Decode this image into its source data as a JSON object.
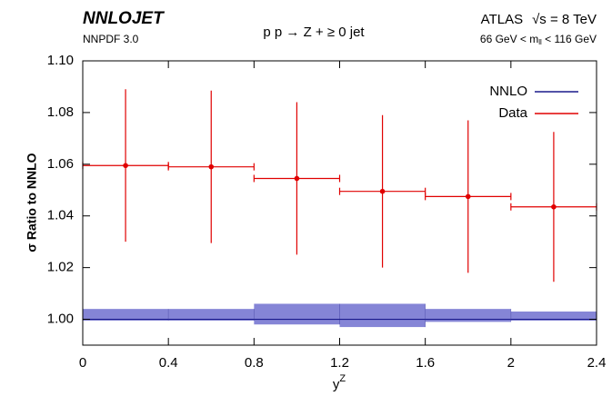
{
  "chart_data": {
    "type": "ratio",
    "title": "NNLOJET",
    "subtitle": "NNPDF 3.0",
    "process": "p p → Z + ≥ 0 jet",
    "experiment": "ATLAS",
    "energy": "√s = 8 TeV",
    "mass_range": {
      "prefix": "66 GeV < m",
      "subscript": "ll",
      "suffix": " < 116 GeV"
    },
    "x_label": {
      "text": "y",
      "superscript": "Z"
    },
    "y_label": "σ  Ratio to NNLO",
    "xlim": [
      0,
      2.4
    ],
    "xticks": [
      0,
      0.4,
      0.8,
      1.2,
      1.6,
      2,
      2.4
    ],
    "ylim": [
      0.99,
      1.1
    ],
    "yticks": [
      {
        "value": 1.0,
        "label": "1.00"
      },
      {
        "value": 1.02,
        "label": "1.02"
      },
      {
        "value": 1.04,
        "label": "1.04"
      },
      {
        "value": 1.06,
        "label": "1.06"
      },
      {
        "value": 1.08,
        "label": "1.08"
      },
      {
        "value": 1.1,
        "label": "1.10"
      }
    ],
    "legend": "upper right",
    "series": [
      {
        "name": "NNLO",
        "color": "#1a1a8c",
        "band_color": "#8585d6",
        "style": "band",
        "bins": [
          0,
          0.4,
          0.8,
          1.2,
          1.6,
          2.0,
          2.4
        ],
        "values": [
          1.0,
          1.0,
          1.0,
          1.0,
          1.0,
          1.0
        ],
        "lower": [
          0.9995,
          0.9995,
          0.998,
          0.997,
          0.999,
          0.9995
        ],
        "upper": [
          1.004,
          1.004,
          1.006,
          1.006,
          1.004,
          1.003
        ]
      },
      {
        "name": "Data",
        "color": "#e00000",
        "style": "errorbar",
        "x": [
          0.2,
          0.6,
          1.0,
          1.4,
          1.8,
          2.2
        ],
        "xerr": [
          0.2,
          0.2,
          0.2,
          0.2,
          0.2,
          0.2
        ],
        "values": [
          1.0595,
          1.059,
          1.0545,
          1.0495,
          1.0475,
          1.0435
        ],
        "yerr": [
          0.0295,
          0.0295,
          0.0295,
          0.0295,
          0.0295,
          0.029
        ]
      }
    ]
  }
}
